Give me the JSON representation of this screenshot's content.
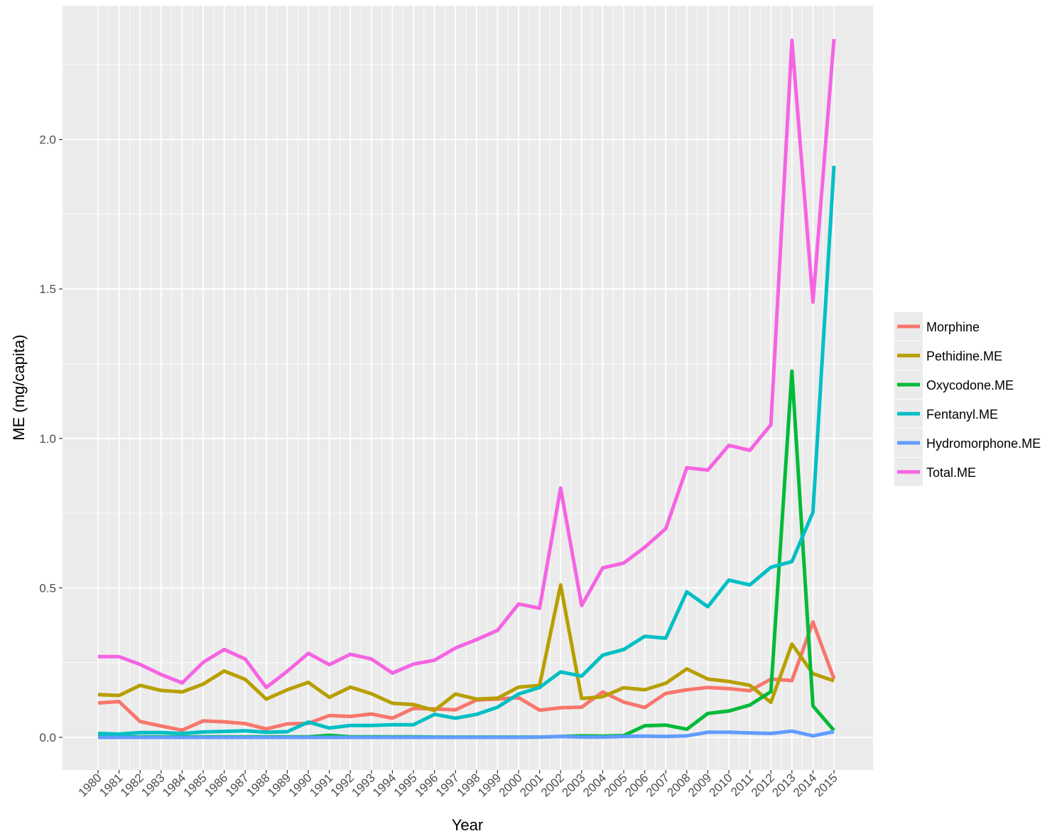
{
  "chart_data": {
    "type": "line",
    "xlabel": "Year",
    "ylabel": "ME (mg/capita)",
    "ylim": [
      -0.1,
      2.45
    ],
    "yticks": [
      0.0,
      0.5,
      1.0,
      1.5,
      2.0
    ],
    "ytick_labels": [
      "0.0",
      "0.5",
      "1.0",
      "1.5",
      "2.0"
    ],
    "grid": true,
    "legend_position": "right",
    "categories": [
      "1980",
      "1981",
      "1982",
      "1983",
      "1984",
      "1985",
      "1986",
      "1987",
      "1988",
      "1989",
      "1990",
      "1991",
      "1992",
      "1993",
      "1994",
      "1995",
      "1996",
      "1997",
      "1998",
      "1999",
      "2000",
      "2001",
      "2002",
      "2003",
      "2004",
      "2005",
      "2006",
      "2007",
      "2008",
      "2009",
      "2010",
      "2011",
      "2012",
      "2013",
      "2014",
      "2015"
    ],
    "series": [
      {
        "name": "Morphine",
        "color": "#F8766D",
        "values": [
          0.115,
          0.12,
          0.053,
          0.038,
          0.024,
          0.055,
          0.052,
          0.046,
          0.028,
          0.045,
          0.047,
          0.073,
          0.07,
          0.078,
          0.064,
          0.097,
          0.095,
          0.092,
          0.125,
          0.128,
          0.133,
          0.091,
          0.099,
          0.101,
          0.152,
          0.118,
          0.1,
          0.147,
          0.159,
          0.167,
          0.163,
          0.156,
          0.195,
          0.19,
          0.386,
          0.196
        ]
      },
      {
        "name": "Pethidine.ME",
        "color": "#B79F00",
        "values": [
          0.143,
          0.14,
          0.174,
          0.157,
          0.152,
          0.178,
          0.222,
          0.194,
          0.128,
          0.159,
          0.184,
          0.134,
          0.168,
          0.146,
          0.114,
          0.11,
          0.09,
          0.145,
          0.128,
          0.131,
          0.168,
          0.174,
          0.51,
          0.13,
          0.136,
          0.166,
          0.159,
          0.181,
          0.229,
          0.195,
          0.187,
          0.174,
          0.117,
          0.312,
          0.213,
          0.189
        ]
      },
      {
        "name": "Oxycodone.ME",
        "color": "#00BA38",
        "values": [
          0.002,
          0.002,
          0.002,
          0.002,
          0.002,
          0.002,
          0.002,
          0.002,
          0.002,
          0.002,
          0.002,
          0.007,
          0.002,
          0.002,
          0.002,
          0.002,
          0.001,
          0.001,
          0.001,
          0.001,
          0.001,
          0.001,
          0.003,
          0.005,
          0.004,
          0.006,
          0.039,
          0.041,
          0.027,
          0.08,
          0.088,
          0.108,
          0.153,
          1.225,
          0.105,
          0.023
        ]
      },
      {
        "name": "Fentanyl.ME",
        "color": "#00BFC4",
        "values": [
          0.013,
          0.011,
          0.016,
          0.016,
          0.013,
          0.018,
          0.02,
          0.022,
          0.017,
          0.019,
          0.051,
          0.031,
          0.04,
          0.04,
          0.042,
          0.042,
          0.077,
          0.064,
          0.077,
          0.101,
          0.145,
          0.167,
          0.219,
          0.205,
          0.275,
          0.294,
          0.338,
          0.332,
          0.487,
          0.437,
          0.526,
          0.51,
          0.569,
          0.588,
          0.753,
          1.912
        ]
      },
      {
        "name": "Hydromorphone.ME",
        "color": "#619CFF",
        "values": [
          0.0,
          0.0,
          0.0,
          0.0,
          0.0,
          0.0,
          0.0,
          0.0,
          0.0,
          0.0,
          0.0,
          0.0,
          0.0,
          0.0,
          0.0,
          0.0,
          0.0,
          0.0,
          0.0,
          0.0,
          0.0,
          0.001,
          0.003,
          0.001,
          0.001,
          0.003,
          0.004,
          0.003,
          0.005,
          0.017,
          0.017,
          0.015,
          0.013,
          0.021,
          0.005,
          0.019
        ]
      },
      {
        "name": "Total.ME",
        "color": "#F564E3",
        "values": [
          0.27,
          0.27,
          0.244,
          0.21,
          0.182,
          0.251,
          0.294,
          0.262,
          0.167,
          0.221,
          0.281,
          0.243,
          0.278,
          0.262,
          0.215,
          0.245,
          0.258,
          0.299,
          0.327,
          0.358,
          0.446,
          0.432,
          0.834,
          0.441,
          0.567,
          0.583,
          0.636,
          0.698,
          0.902,
          0.894,
          0.977,
          0.96,
          1.046,
          2.332,
          1.456,
          2.336
        ]
      }
    ]
  }
}
